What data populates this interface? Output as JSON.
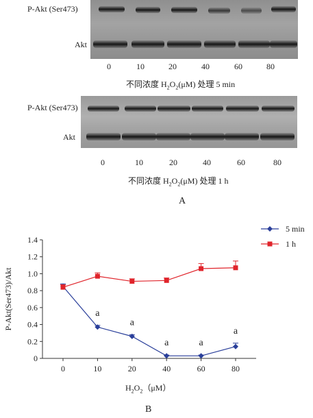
{
  "panel_a": {
    "letter": "A",
    "blot_5min": {
      "labels": [
        "P-Akt (Ser473)",
        "Akt"
      ],
      "lanes": [
        "0",
        "10",
        "20",
        "40",
        "60",
        "80"
      ],
      "caption_pre": "不同浓度 H",
      "caption_sub1": "2",
      "caption_mid": "O",
      "caption_sub2": "2",
      "caption_post": "(μM) 处理 5 min"
    },
    "blot_1h": {
      "labels": [
        "P-Akt (Ser473)",
        "Akt"
      ],
      "lanes": [
        "0",
        "10",
        "20",
        "40",
        "60",
        "80"
      ],
      "caption_pre": "不同浓度 H",
      "caption_sub1": "2",
      "caption_mid": "O",
      "caption_sub2": "2",
      "caption_post": "(μM) 处理 1 h"
    }
  },
  "panel_b": {
    "letter": "B"
  },
  "chart_data": {
    "type": "line",
    "x": [
      0,
      10,
      20,
      40,
      60,
      80
    ],
    "x_tick_labels": [
      "0",
      "10",
      "20",
      "40",
      "60",
      "80"
    ],
    "xlabel_pre": "H",
    "xlabel_sub1": "2",
    "xlabel_mid": "O",
    "xlabel_sub2": "2",
    "xlabel_post": "（μM）",
    "ylabel": "P-Akt(Ser473)/Akt",
    "ylim": [
      0,
      1.4
    ],
    "y_ticks": [
      "0",
      "0.2",
      "0.4",
      "0.6",
      "0.8",
      "1.0",
      "1.2",
      "1.4"
    ],
    "legend_position": "top-right",
    "series": [
      {
        "name": "5 min",
        "color": "#2a3f9a",
        "marker": "diamond",
        "values": [
          0.85,
          0.37,
          0.26,
          0.03,
          0.03,
          0.14
        ],
        "errors": [
          0.03,
          0.02,
          0.02,
          0.01,
          0.01,
          0.04
        ]
      },
      {
        "name": "1 h",
        "color": "#e0242b",
        "marker": "square",
        "values": [
          0.84,
          0.97,
          0.91,
          0.92,
          1.06,
          1.07
        ],
        "errors": [
          0.03,
          0.04,
          0.03,
          0.03,
          0.06,
          0.08
        ]
      }
    ],
    "annotations": [
      {
        "x": 10,
        "text": "a"
      },
      {
        "x": 20,
        "text": "a"
      },
      {
        "x": 40,
        "text": "a"
      },
      {
        "x": 60,
        "text": "a"
      },
      {
        "x": 80,
        "text": "a"
      }
    ]
  }
}
